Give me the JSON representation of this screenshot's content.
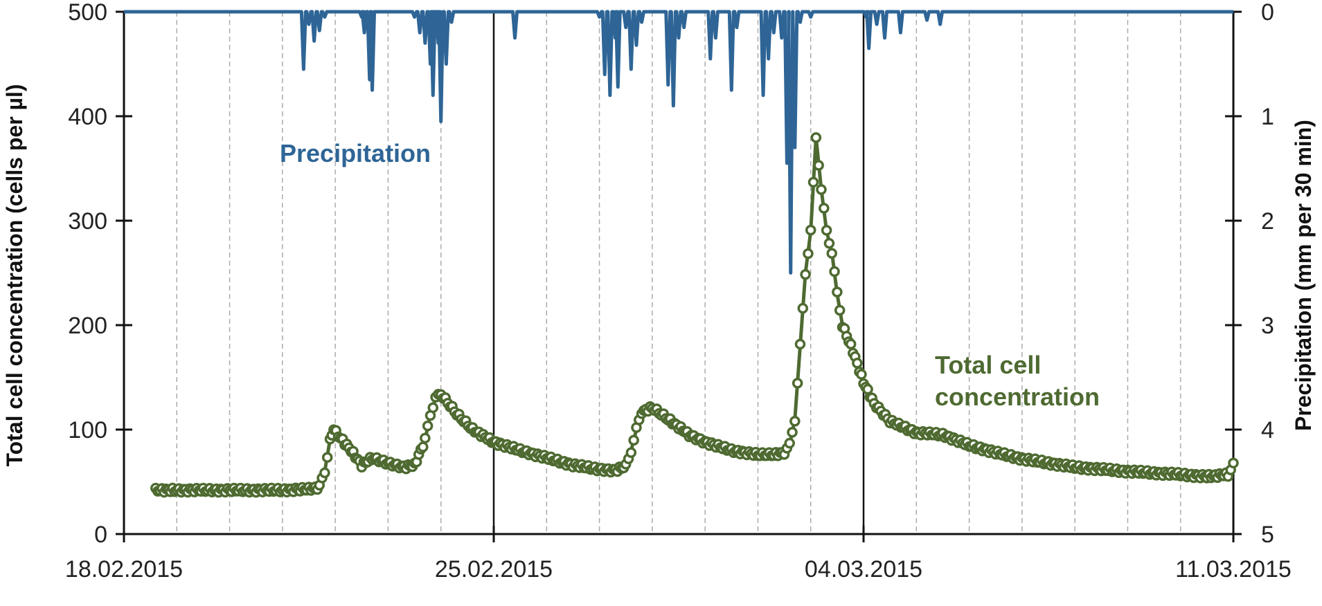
{
  "chart_data": {
    "type": "line",
    "xlabel": "",
    "y_left_label": "Total cell concentration (cells per µl)",
    "y_right_label": "Precipitation (mm per 30 min)",
    "x_ticks": [
      "18.02.2015",
      "25.02.2015",
      "04.03.2015",
      "11.03.2015"
    ],
    "y_left_ticks": [
      "0",
      "100",
      "200",
      "300",
      "400",
      "500"
    ],
    "y_right_ticks": [
      "0",
      "1",
      "2",
      "3",
      "4",
      "5"
    ],
    "y_left_lim": [
      0,
      500
    ],
    "y_right_lim": [
      0,
      5
    ],
    "y_right_inverted": true,
    "x_range_days": [
      0,
      21
    ],
    "grid_dashed_every_day": true,
    "annotations": {
      "precipitation": "Precipitation",
      "cell_line1": "Total cell",
      "cell_line2": "concentration"
    },
    "colors": {
      "precipitation": "#2e6596",
      "cell": "#4e6a31",
      "axis": "#111111",
      "grid": "#aaaaaa"
    },
    "series": [
      {
        "name": "Total cell concentration",
        "axis": "left",
        "marker": "open-circle",
        "points": [
          [
            0.6,
            42
          ],
          [
            1,
            42
          ],
          [
            2,
            42
          ],
          [
            3,
            42
          ],
          [
            3.5,
            43
          ],
          [
            3.7,
            45
          ],
          [
            3.8,
            60
          ],
          [
            3.9,
            90
          ],
          [
            3.97,
            100
          ],
          [
            4.1,
            92
          ],
          [
            4.3,
            80
          ],
          [
            4.5,
            66
          ],
          [
            4.7,
            73
          ],
          [
            5,
            68
          ],
          [
            5.3,
            64
          ],
          [
            5.5,
            66
          ],
          [
            5.7,
            90
          ],
          [
            5.8,
            115
          ],
          [
            5.9,
            130
          ],
          [
            6,
            134
          ],
          [
            6.3,
            115
          ],
          [
            6.6,
            100
          ],
          [
            7,
            88
          ],
          [
            7.5,
            80
          ],
          [
            8,
            73
          ],
          [
            8.5,
            66
          ],
          [
            9,
            62
          ],
          [
            9.3,
            61
          ],
          [
            9.5,
            65
          ],
          [
            9.6,
            80
          ],
          [
            9.7,
            100
          ],
          [
            9.8,
            117
          ],
          [
            10,
            121
          ],
          [
            10.3,
            110
          ],
          [
            10.7,
            95
          ],
          [
            11,
            88
          ],
          [
            11.5,
            80
          ],
          [
            12,
            76
          ],
          [
            12.3,
            76
          ],
          [
            12.5,
            78
          ],
          [
            12.6,
            85
          ],
          [
            12.7,
            110
          ],
          [
            12.8,
            180
          ],
          [
            12.9,
            250
          ],
          [
            13,
            290
          ],
          [
            13.1,
            380
          ],
          [
            13.2,
            330
          ],
          [
            13.3,
            290
          ],
          [
            13.4,
            270
          ],
          [
            13.5,
            230
          ],
          [
            13.6,
            200
          ],
          [
            13.8,
            175
          ],
          [
            14,
            145
          ],
          [
            14.2,
            125
          ],
          [
            14.5,
            108
          ],
          [
            15,
            97
          ],
          [
            15.5,
            95
          ],
          [
            16,
            85
          ],
          [
            16.5,
            78
          ],
          [
            17,
            72
          ],
          [
            17.5,
            68
          ],
          [
            18,
            64
          ],
          [
            19,
            60
          ],
          [
            20,
            57
          ],
          [
            20.5,
            55
          ],
          [
            20.9,
            57
          ],
          [
            21,
            68
          ]
        ]
      },
      {
        "name": "Precipitation",
        "axis": "right",
        "spikes": [
          [
            3.4,
            0.55
          ],
          [
            3.5,
            0.12
          ],
          [
            3.6,
            0.28
          ],
          [
            3.7,
            0.18
          ],
          [
            3.8,
            0.05
          ],
          [
            4.5,
            0.05
          ],
          [
            4.55,
            0.2
          ],
          [
            4.65,
            0.65
          ],
          [
            4.7,
            0.75
          ],
          [
            5.5,
            0.05
          ],
          [
            5.6,
            0.2
          ],
          [
            5.7,
            0.3
          ],
          [
            5.8,
            0.5
          ],
          [
            5.85,
            0.8
          ],
          [
            5.9,
            0.18
          ],
          [
            5.95,
            0.3
          ],
          [
            6,
            1.05
          ],
          [
            6.1,
            0.5
          ],
          [
            6.2,
            0.1
          ],
          [
            7.4,
            0.25
          ],
          [
            9,
            0.05
          ],
          [
            9.1,
            0.6
          ],
          [
            9.2,
            0.8
          ],
          [
            9.3,
            0.25
          ],
          [
            9.35,
            0.72
          ],
          [
            9.5,
            0.15
          ],
          [
            9.6,
            0.55
          ],
          [
            9.7,
            0.32
          ],
          [
            9.8,
            0.1
          ],
          [
            10.3,
            0.7
          ],
          [
            10.4,
            0.9
          ],
          [
            10.5,
            0.25
          ],
          [
            10.6,
            0.15
          ],
          [
            11.1,
            0.45
          ],
          [
            11.2,
            0.25
          ],
          [
            11.5,
            0.75
          ],
          [
            11.6,
            0.15
          ],
          [
            12.1,
            0.8
          ],
          [
            12.2,
            0.45
          ],
          [
            12.3,
            0.2
          ],
          [
            12.45,
            0.25
          ],
          [
            12.55,
            1.45
          ],
          [
            12.62,
            2.5
          ],
          [
            12.7,
            1.3
          ],
          [
            12.8,
            0.1
          ],
          [
            13,
            0.05
          ],
          [
            14.05,
            0.05
          ],
          [
            14.1,
            0.35
          ],
          [
            14.25,
            0.12
          ],
          [
            14.4,
            0.25
          ],
          [
            14.7,
            0.2
          ],
          [
            15.2,
            0.08
          ],
          [
            15.45,
            0.12
          ]
        ]
      }
    ]
  }
}
